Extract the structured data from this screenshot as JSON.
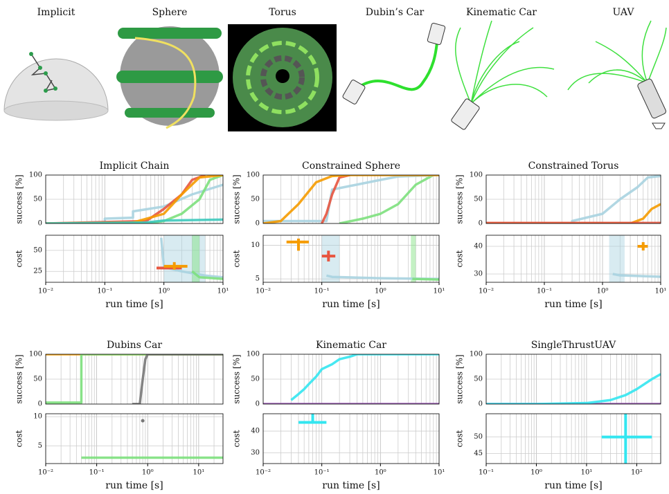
{
  "scenes": [
    "Implicit",
    "Sphere",
    "Torus",
    "Dubin’s Car",
    "Kinematic Car",
    "UAV"
  ],
  "chart_data": [
    {
      "type": "line",
      "title": "Implicit Chain",
      "ylabel": "success [%]",
      "log_x": true,
      "grid": true,
      "xlim": [
        0.01,
        10
      ],
      "ylim": [
        0,
        100
      ],
      "yticks": [
        0,
        50,
        100
      ],
      "series": [
        {
          "color": "#a9d3e0",
          "x": [
            0.01,
            0.1,
            0.1,
            0.3,
            0.3,
            1,
            3,
            10
          ],
          "values": [
            0,
            0,
            10,
            12,
            25,
            35,
            60,
            80
          ]
        },
        {
          "color": "#7de07d",
          "x": [
            0.01,
            0.5,
            1,
            2,
            4,
            6,
            10
          ],
          "values": [
            0,
            0,
            5,
            20,
            50,
            90,
            100
          ]
        },
        {
          "color": "#e8553f",
          "x": [
            0.01,
            0.5,
            1,
            2,
            3,
            5
          ],
          "values": [
            0,
            5,
            30,
            60,
            90,
            100
          ]
        },
        {
          "color": "#f59b00",
          "x": [
            0.01,
            0.3,
            1,
            2,
            4,
            10
          ],
          "values": [
            0,
            2,
            20,
            60,
            95,
            100
          ]
        },
        {
          "color": "#3ec9bd",
          "x": [
            0.01,
            0.5,
            1,
            10
          ],
          "values": [
            0,
            2,
            6,
            8
          ]
        }
      ]
    },
    {
      "type": "line",
      "ylabel": "cost",
      "xlabel": "run time [s]",
      "log_x": true,
      "grid": true,
      "xlim": [
        0.01,
        10
      ],
      "ylim": [
        12,
        68
      ],
      "yticks": [
        25,
        50
      ],
      "xticks": [
        {
          "value": 0.01,
          "label": "10⁻²"
        },
        {
          "value": 0.1,
          "label": "10⁻¹"
        },
        {
          "value": 1,
          "label": "10⁰"
        },
        {
          "value": 10,
          "label": "10¹"
        }
      ],
      "bands": [
        {
          "color": "#a9d3e0",
          "x": [
            1,
            5
          ]
        },
        {
          "color": "#7de07d",
          "x": [
            3,
            4
          ]
        }
      ],
      "series": [
        {
          "color": "#a9d3e0",
          "x": [
            0.9,
            1,
            2,
            5,
            10
          ],
          "values": [
            65,
            30,
            25,
            20,
            18
          ]
        },
        {
          "color": "#7de07d",
          "x": [
            3,
            4,
            10
          ],
          "values": [
            25,
            18,
            16
          ]
        }
      ],
      "crosses": [
        {
          "color": "#e8553f",
          "x": 1.2,
          "y": 29,
          "xerr": [
            0.75,
            2
          ],
          "yerr": [
            28,
            30
          ]
        },
        {
          "color": "#f59b00",
          "x": 1.5,
          "y": 31,
          "xerr": [
            1,
            2.5
          ],
          "yerr": [
            27,
            36
          ]
        }
      ]
    },
    {
      "type": "line",
      "title": "Constrained Sphere",
      "ylabel": "success [%]",
      "log_x": true,
      "grid": true,
      "xlim": [
        0.01,
        10
      ],
      "ylim": [
        0,
        100
      ],
      "yticks": [
        0,
        50,
        100
      ],
      "series": [
        {
          "color": "#7de07d",
          "x": [
            0.2,
            0.5,
            1,
            2,
            4,
            8
          ],
          "values": [
            0,
            10,
            20,
            40,
            80,
            100
          ]
        },
        {
          "color": "#a9d3e0",
          "x": [
            0.01,
            0.12,
            0.15,
            1,
            2,
            10
          ],
          "values": [
            5,
            5,
            70,
            90,
            97,
            100
          ]
        },
        {
          "color": "#e8553f",
          "x": [
            0.1,
            0.12,
            0.15,
            0.2,
            0.3
          ],
          "values": [
            0,
            20,
            60,
            95,
            100
          ]
        },
        {
          "color": "#f59b00",
          "x": [
            0.01,
            0.02,
            0.04,
            0.08,
            0.15,
            0.3,
            10
          ],
          "values": [
            0,
            5,
            40,
            85,
            98,
            100,
            100
          ]
        }
      ]
    },
    {
      "type": "line",
      "ylabel": "cost",
      "xlabel": "run time [s]",
      "log_x": true,
      "grid": true,
      "xlim": [
        0.01,
        10
      ],
      "ylim": [
        4.5,
        11.5
      ],
      "yticks": [
        5,
        10
      ],
      "xticks": [
        {
          "value": 0.01,
          "label": "10⁻²"
        },
        {
          "value": 0.1,
          "label": "10⁻¹"
        },
        {
          "value": 1,
          "label": "10⁰"
        },
        {
          "value": 10,
          "label": "10¹"
        }
      ],
      "bands": [
        {
          "color": "#a9d3e0",
          "x": [
            0.1,
            0.2
          ]
        },
        {
          "color": "#7de07d",
          "x": [
            3.3,
            4
          ]
        }
      ],
      "series": [
        {
          "color": "#a9d3e0",
          "x": [
            0.12,
            0.15,
            1,
            10
          ],
          "values": [
            5.5,
            5.3,
            5.1,
            5
          ]
        },
        {
          "color": "#7de07d",
          "x": [
            3.5,
            10
          ],
          "values": [
            5,
            4.9
          ]
        }
      ],
      "crosses": [
        {
          "color": "#f59b00",
          "x": 0.04,
          "y": 10.5,
          "xerr": [
            0.025,
            0.06
          ],
          "yerr": [
            9.2,
            11
          ]
        },
        {
          "color": "#e8553f",
          "x": 0.13,
          "y": 8.4,
          "xerr": [
            0.1,
            0.17
          ],
          "yerr": [
            7.6,
            9.2
          ]
        }
      ]
    },
    {
      "type": "line",
      "title": "Constrained Torus",
      "ylabel": "success [%]",
      "log_x": true,
      "grid": true,
      "xlim": [
        0.01,
        10
      ],
      "ylim": [
        0,
        100
      ],
      "yticks": [
        0,
        50,
        100
      ],
      "series": [
        {
          "color": "#a9d3e0",
          "x": [
            0.01,
            0.3,
            0.3,
            1,
            2,
            4,
            6,
            10
          ],
          "values": [
            0,
            0,
            5,
            20,
            50,
            75,
            95,
            98
          ]
        },
        {
          "color": "#f59b00",
          "x": [
            0.01,
            3,
            5,
            7,
            10
          ],
          "values": [
            0,
            0,
            10,
            30,
            40
          ]
        },
        {
          "color": "#e8553f",
          "x": [
            0.01,
            10
          ],
          "values": [
            1,
            1
          ]
        }
      ]
    },
    {
      "type": "line",
      "ylabel": "cost",
      "xlabel": "run time [s]",
      "log_x": true,
      "grid": true,
      "xlim": [
        0.01,
        10
      ],
      "ylim": [
        27,
        44
      ],
      "yticks": [
        30,
        40
      ],
      "xticks": [
        {
          "value": 0.01,
          "label": "10⁻²"
        },
        {
          "value": 0.1,
          "label": "10⁻¹"
        },
        {
          "value": 1,
          "label": "10⁰"
        },
        {
          "value": 10,
          "label": "10¹"
        }
      ],
      "bands": [
        {
          "color": "#a9d3e0",
          "x": [
            1.3,
            2.4
          ]
        }
      ],
      "series": [
        {
          "color": "#a9d3e0",
          "x": [
            1.5,
            2,
            10
          ],
          "values": [
            30,
            29.5,
            29
          ]
        }
      ],
      "crosses": [
        {
          "color": "#f59b00",
          "x": 5,
          "y": 40,
          "xerr": [
            4,
            6
          ],
          "yerr": [
            38.5,
            41.5
          ]
        }
      ]
    },
    {
      "type": "line",
      "title": "Dubins Car",
      "ylabel": "success [%]",
      "log_x": true,
      "grid": true,
      "xlim": [
        0.01,
        30
      ],
      "ylim": [
        0,
        100
      ],
      "yticks": [
        0,
        50,
        100
      ],
      "series": [
        {
          "color": "#f59b00",
          "x": [
            0.01,
            30
          ],
          "values": [
            100,
            100
          ]
        },
        {
          "color": "#7de07d",
          "x": [
            0.01,
            0.05,
            0.05,
            30
          ],
          "values": [
            3,
            3,
            100,
            100
          ]
        },
        {
          "color": "#777777",
          "x": [
            0.5,
            0.7,
            0.8,
            0.9,
            1,
            30
          ],
          "values": [
            0,
            0,
            50,
            90,
            100,
            100
          ]
        }
      ]
    },
    {
      "type": "line",
      "ylabel": "cost",
      "xlabel": "run time [s]",
      "log_x": true,
      "grid": true,
      "xlim": [
        0.01,
        30
      ],
      "ylim": [
        2,
        10.5
      ],
      "yticks": [
        5,
        10
      ],
      "xticks": [
        {
          "value": 0.01,
          "label": "10⁻²"
        },
        {
          "value": 0.1,
          "label": "10⁻¹"
        },
        {
          "value": 1,
          "label": "10⁰"
        },
        {
          "value": 10,
          "label": "10¹"
        }
      ],
      "series": [
        {
          "color": "#7de07d",
          "x": [
            0.05,
            30
          ],
          "values": [
            3,
            3
          ]
        }
      ],
      "crosses": [
        {
          "color": "#777777",
          "x": 0.8,
          "y": 9.3
        }
      ]
    },
    {
      "type": "line",
      "title": "Kinematic Car",
      "ylabel": "success [%]",
      "log_x": true,
      "grid": true,
      "xlim": [
        0.01,
        10
      ],
      "ylim": [
        0,
        100
      ],
      "yticks": [
        0,
        50,
        100
      ],
      "series": [
        {
          "color": "#9b59b6",
          "x": [
            0.01,
            10
          ],
          "values": [
            0,
            0
          ]
        },
        {
          "color": "#33e6f0",
          "x": [
            0.03,
            0.04,
            0.05,
            0.06,
            0.08,
            0.1,
            0.15,
            0.2,
            0.3,
            0.4,
            10
          ],
          "values": [
            8,
            20,
            30,
            40,
            55,
            70,
            80,
            90,
            95,
            100,
            100
          ]
        }
      ]
    },
    {
      "type": "line",
      "ylabel": "cost",
      "xlabel": "run time [s]",
      "log_x": true,
      "grid": true,
      "xlim": [
        0.01,
        10
      ],
      "ylim": [
        25,
        48
      ],
      "yticks": [
        30,
        40
      ],
      "xticks": [
        {
          "value": 0.01,
          "label": "10⁻²"
        },
        {
          "value": 0.1,
          "label": "10⁻¹"
        },
        {
          "value": 1,
          "label": "10⁰"
        },
        {
          "value": 10,
          "label": "10¹"
        }
      ],
      "series": [],
      "crosses": [
        {
          "color": "#33e6f0",
          "x": 0.07,
          "y": 44,
          "xerr": [
            0.04,
            0.12
          ],
          "yerr": [
            44,
            48
          ]
        }
      ]
    },
    {
      "type": "line",
      "title": "SingleThrustUAV",
      "ylabel": "success [%]",
      "log_x": true,
      "grid": true,
      "xlim": [
        0.1,
        300
      ],
      "ylim": [
        0,
        100
      ],
      "yticks": [
        0,
        50,
        100
      ],
      "series": [
        {
          "color": "#9b59b6",
          "x": [
            0.1,
            300
          ],
          "values": [
            0,
            0
          ]
        },
        {
          "color": "#33e6f0",
          "x": [
            0.1,
            1,
            10,
            30,
            60,
            100,
            200,
            300
          ],
          "values": [
            0,
            0,
            2,
            8,
            18,
            30,
            50,
            60
          ]
        }
      ]
    },
    {
      "type": "line",
      "ylabel": "cost",
      "xlabel": "run time [s]",
      "log_x": true,
      "grid": true,
      "xlim": [
        0.1,
        300
      ],
      "ylim": [
        42,
        57
      ],
      "yticks": [
        45,
        50
      ],
      "xticks": [
        {
          "value": 0.1,
          "label": "10⁻¹"
        },
        {
          "value": 1,
          "label": "10⁰"
        },
        {
          "value": 10,
          "label": "10¹"
        },
        {
          "value": 100,
          "label": "10²"
        }
      ],
      "series": [],
      "crosses": [
        {
          "color": "#33e6f0",
          "x": 60,
          "y": 50,
          "xerr": [
            20,
            200
          ],
          "yerr": [
            42,
            57
          ]
        }
      ]
    }
  ]
}
